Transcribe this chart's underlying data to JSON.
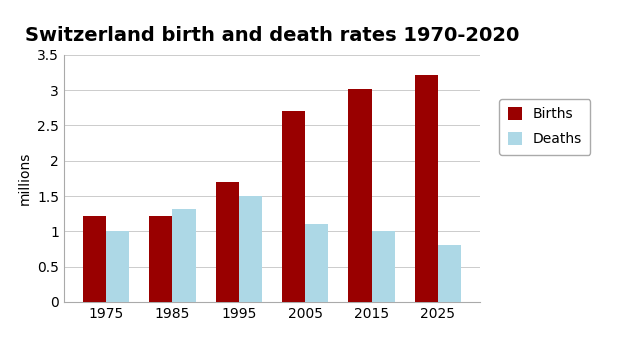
{
  "title": "Switzerland birth and death rates 1970-2020",
  "ylabel": "millions",
  "categories": [
    1975,
    1985,
    1995,
    2005,
    2015,
    2025
  ],
  "births": [
    1.22,
    1.22,
    1.7,
    2.7,
    3.02,
    3.22
  ],
  "deaths": [
    1.0,
    1.32,
    1.5,
    1.1,
    1.0,
    0.8
  ],
  "birth_color": "#990000",
  "death_color": "#add8e6",
  "ylim": [
    0,
    3.5
  ],
  "yticks": [
    0,
    0.5,
    1.0,
    1.5,
    2.0,
    2.5,
    3.0,
    3.5
  ],
  "bar_width": 0.35,
  "legend_labels": [
    "Births",
    "Deaths"
  ],
  "title_fontsize": 14,
  "ylabel_fontsize": 10,
  "tick_fontsize": 10,
  "background_color": "#ffffff"
}
